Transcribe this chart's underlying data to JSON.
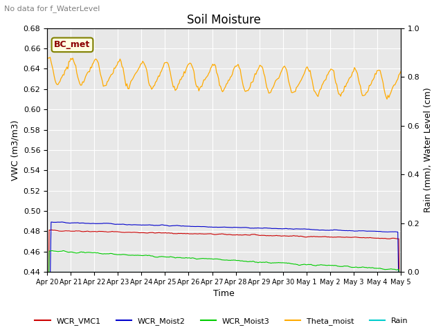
{
  "title": "Soil Moisture",
  "top_left_text": "No data for f_WaterLevel",
  "ylabel_left": "VWC (m3/m3)",
  "ylabel_right": "Rain (mm), Water Level (cm)",
  "xlabel": "Time",
  "ylim_left": [
    0.44,
    0.68
  ],
  "ylim_right": [
    0.0,
    1.0
  ],
  "yticks_left": [
    0.44,
    0.46,
    0.48,
    0.5,
    0.52,
    0.54,
    0.56,
    0.58,
    0.6,
    0.62,
    0.64,
    0.66,
    0.68
  ],
  "yticks_right": [
    0.0,
    0.2,
    0.4,
    0.6,
    0.8,
    1.0
  ],
  "n_days": 15,
  "xtick_labels": [
    "Apr 20",
    "Apr 21",
    "Apr 22",
    "Apr 23",
    "Apr 24",
    "Apr 25",
    "Apr 26",
    "Apr 27",
    "Apr 28",
    "Apr 29",
    "Apr 30",
    "May 1",
    "May 2",
    "May 3",
    "May 4",
    "May 5"
  ],
  "annotation_text": "BC_met",
  "colors": {
    "WCR_VMC1": "#cc0000",
    "WCR_Moist2": "#0000cc",
    "WCR_Moist3": "#00cc00",
    "Theta_moist": "#ffaa00",
    "Rain": "#00cccc"
  },
  "bg_color": "#e8e8e8",
  "fig_bg": "#ffffff",
  "title_fontsize": 12,
  "axis_fontsize": 9,
  "tick_fontsize": 8,
  "xtick_fontsize": 7
}
